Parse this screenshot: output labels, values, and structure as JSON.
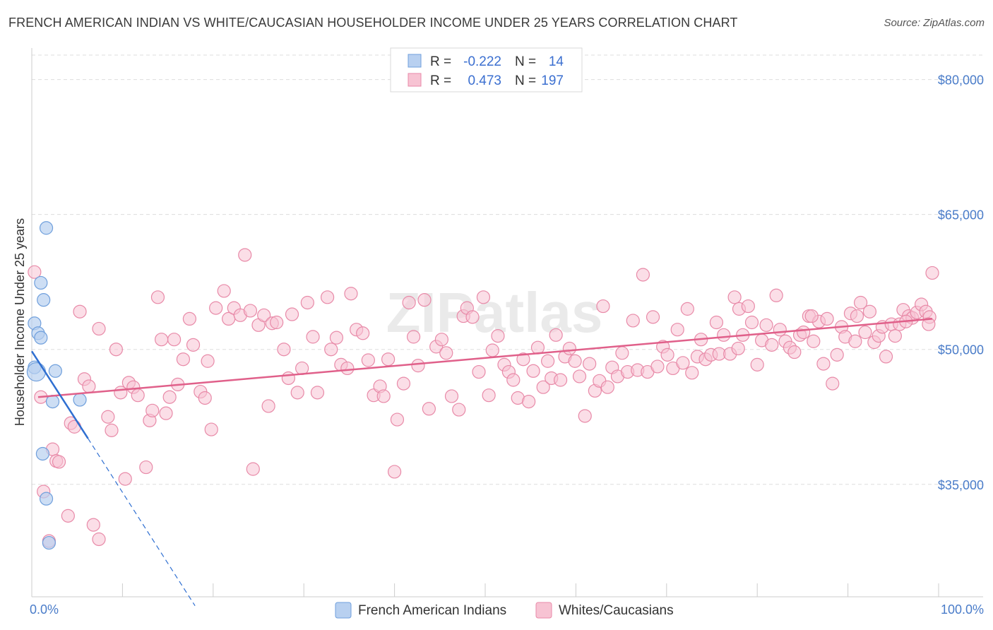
{
  "title": "FRENCH AMERICAN INDIAN VS WHITE/CAUCASIAN HOUSEHOLDER INCOME UNDER 25 YEARS CORRELATION CHART",
  "source": "Source: ZipAtlas.com",
  "legend": {
    "r_label": "R =",
    "n_label": "N =",
    "rows": [
      {
        "r": "-0.222",
        "n": "14"
      },
      {
        "r": "0.473",
        "n": "197"
      }
    ]
  },
  "colors": {
    "blue_fill": "#b8d0f0",
    "blue_stroke": "#6f9fdc",
    "blue_line": "#2f6fd1",
    "pink_fill": "#f7c3d3",
    "pink_stroke": "#e88aa8",
    "pink_line": "#e0608a",
    "tick_text": "#4a7cc9",
    "grid": "#dddddd"
  },
  "chart_data": {
    "type": "scatter",
    "title": "FRENCH AMERICAN INDIAN VS WHITE/CAUCASIAN HOUSEHOLDER INCOME UNDER 25 YEARS CORRELATION CHART",
    "xlabel": "",
    "ylabel": "Householder Income Under 25 years",
    "xlim": [
      0,
      100
    ],
    "ylim": [
      22500,
      83500
    ],
    "y_ticks": [
      35000,
      50000,
      65000,
      80000
    ],
    "y_tick_labels": [
      "$35,000",
      "$50,000",
      "$65,000",
      "$80,000"
    ],
    "x_tick_labels": [
      "0.0%",
      "100.0%"
    ],
    "grid": true,
    "legend_position": "bottom",
    "series": [
      {
        "name": "French American Indians",
        "r": -0.222,
        "n": 14,
        "trend": {
          "x": [
            0,
            6.2
          ],
          "y": [
            49800,
            40100
          ],
          "dashed_to": {
            "x": 18,
            "y": 21500
          }
        },
        "points": [
          [
            0.3,
            48000
          ],
          [
            0.3,
            52900
          ],
          [
            0.7,
            51800
          ],
          [
            1.0,
            51300
          ],
          [
            1.0,
            57400
          ],
          [
            1.3,
            55500
          ],
          [
            1.6,
            63500
          ],
          [
            1.2,
            38400
          ],
          [
            1.6,
            33400
          ],
          [
            1.9,
            28500
          ],
          [
            2.3,
            44200
          ],
          [
            2.6,
            47600
          ],
          [
            5.3,
            44400
          ],
          [
            0.5,
            47500
          ]
        ]
      },
      {
        "name": "Whites/Caucasians",
        "r": 0.473,
        "n": 197,
        "trend": {
          "x": [
            0.7,
            99.3
          ],
          "y": [
            44700,
            53400
          ]
        },
        "points": [
          [
            0.3,
            58600
          ],
          [
            1.0,
            44700
          ],
          [
            1.3,
            34200
          ],
          [
            1.9,
            28700
          ],
          [
            2.3,
            38900
          ],
          [
            2.7,
            37600
          ],
          [
            3.0,
            37500
          ],
          [
            4.0,
            31500
          ],
          [
            4.3,
            41800
          ],
          [
            4.7,
            41400
          ],
          [
            5.3,
            54200
          ],
          [
            5.8,
            46700
          ],
          [
            6.3,
            45900
          ],
          [
            6.8,
            30500
          ],
          [
            7.4,
            28900
          ],
          [
            7.4,
            52300
          ],
          [
            8.4,
            42500
          ],
          [
            8.8,
            41000
          ],
          [
            9.3,
            50000
          ],
          [
            9.8,
            45200
          ],
          [
            10.3,
            35600
          ],
          [
            10.7,
            46300
          ],
          [
            11.2,
            45800
          ],
          [
            11.7,
            44900
          ],
          [
            12.6,
            36900
          ],
          [
            13.0,
            42100
          ],
          [
            13.3,
            43200
          ],
          [
            13.9,
            55800
          ],
          [
            14.3,
            51100
          ],
          [
            14.8,
            42900
          ],
          [
            15.2,
            44700
          ],
          [
            15.7,
            51100
          ],
          [
            16.1,
            46100
          ],
          [
            16.7,
            48900
          ],
          [
            17.4,
            53400
          ],
          [
            17.8,
            50500
          ],
          [
            18.6,
            45300
          ],
          [
            19.1,
            44600
          ],
          [
            19.4,
            48700
          ],
          [
            19.8,
            41100
          ],
          [
            20.3,
            54600
          ],
          [
            21.2,
            56500
          ],
          [
            21.7,
            53400
          ],
          [
            22.3,
            54600
          ],
          [
            23.0,
            53800
          ],
          [
            23.5,
            60500
          ],
          [
            24.1,
            54300
          ],
          [
            24.4,
            36700
          ],
          [
            25.0,
            52700
          ],
          [
            25.6,
            53800
          ],
          [
            26.1,
            43700
          ],
          [
            26.5,
            52900
          ],
          [
            27.0,
            53000
          ],
          [
            27.8,
            50000
          ],
          [
            28.3,
            46800
          ],
          [
            28.7,
            53900
          ],
          [
            29.3,
            45200
          ],
          [
            29.8,
            47900
          ],
          [
            30.4,
            55200
          ],
          [
            31.0,
            51400
          ],
          [
            31.5,
            45200
          ],
          [
            32.6,
            55800
          ],
          [
            33.0,
            50000
          ],
          [
            33.6,
            51300
          ],
          [
            34.1,
            48300
          ],
          [
            34.8,
            47900
          ],
          [
            35.2,
            56200
          ],
          [
            35.8,
            52200
          ],
          [
            36.5,
            51800
          ],
          [
            37.1,
            48800
          ],
          [
            37.7,
            44900
          ],
          [
            38.4,
            45900
          ],
          [
            38.8,
            44800
          ],
          [
            39.3,
            48900
          ],
          [
            40.0,
            36400
          ],
          [
            40.3,
            42200
          ],
          [
            41.0,
            46200
          ],
          [
            41.6,
            55200
          ],
          [
            42.1,
            51400
          ],
          [
            42.6,
            48200
          ],
          [
            43.3,
            55500
          ],
          [
            43.8,
            43400
          ],
          [
            44.6,
            50300
          ],
          [
            45.2,
            51100
          ],
          [
            45.7,
            49600
          ],
          [
            46.3,
            44800
          ],
          [
            47.1,
            43300
          ],
          [
            47.6,
            53700
          ],
          [
            48.0,
            54600
          ],
          [
            48.6,
            53600
          ],
          [
            49.3,
            47500
          ],
          [
            49.8,
            55800
          ],
          [
            50.4,
            44900
          ],
          [
            50.8,
            49900
          ],
          [
            51.4,
            51500
          ],
          [
            52.1,
            48300
          ],
          [
            52.6,
            47500
          ],
          [
            53.1,
            46600
          ],
          [
            53.6,
            44600
          ],
          [
            54.2,
            48900
          ],
          [
            54.8,
            44200
          ],
          [
            55.3,
            47600
          ],
          [
            55.8,
            50200
          ],
          [
            56.4,
            45800
          ],
          [
            56.9,
            48700
          ],
          [
            57.3,
            46800
          ],
          [
            57.8,
            51600
          ],
          [
            58.3,
            46600
          ],
          [
            58.8,
            49200
          ],
          [
            59.3,
            50100
          ],
          [
            59.9,
            48700
          ],
          [
            60.4,
            47000
          ],
          [
            61.0,
            42600
          ],
          [
            61.5,
            48400
          ],
          [
            62.1,
            45400
          ],
          [
            62.6,
            46500
          ],
          [
            63.0,
            54800
          ],
          [
            63.5,
            45800
          ],
          [
            64.0,
            48000
          ],
          [
            64.6,
            47000
          ],
          [
            65.1,
            49600
          ],
          [
            65.7,
            47500
          ],
          [
            66.3,
            53200
          ],
          [
            66.8,
            47700
          ],
          [
            67.4,
            58300
          ],
          [
            67.9,
            47500
          ],
          [
            68.5,
            53600
          ],
          [
            69.0,
            48100
          ],
          [
            69.6,
            50300
          ],
          [
            70.1,
            49400
          ],
          [
            70.7,
            47900
          ],
          [
            71.2,
            52200
          ],
          [
            71.8,
            48500
          ],
          [
            72.3,
            54500
          ],
          [
            72.8,
            47400
          ],
          [
            73.4,
            49200
          ],
          [
            73.8,
            51100
          ],
          [
            74.3,
            48900
          ],
          [
            74.9,
            49400
          ],
          [
            75.5,
            53000
          ],
          [
            75.8,
            49500
          ],
          [
            76.3,
            51600
          ],
          [
            77.0,
            49500
          ],
          [
            77.5,
            55800
          ],
          [
            78.0,
            54500
          ],
          [
            78.4,
            51600
          ],
          [
            79.0,
            54800
          ],
          [
            79.4,
            53000
          ],
          [
            80.0,
            48300
          ],
          [
            80.5,
            51000
          ],
          [
            81.0,
            52700
          ],
          [
            81.6,
            50500
          ],
          [
            82.1,
            56000
          ],
          [
            82.5,
            52200
          ],
          [
            83.1,
            50900
          ],
          [
            83.6,
            50200
          ],
          [
            84.1,
            49700
          ],
          [
            84.7,
            51600
          ],
          [
            85.1,
            51900
          ],
          [
            85.7,
            53700
          ],
          [
            86.2,
            50900
          ],
          [
            86.8,
            53100
          ],
          [
            87.3,
            48400
          ],
          [
            87.7,
            53400
          ],
          [
            88.3,
            46200
          ],
          [
            88.8,
            49400
          ],
          [
            89.3,
            52500
          ],
          [
            89.7,
            51400
          ],
          [
            90.3,
            54000
          ],
          [
            90.8,
            50900
          ],
          [
            91.4,
            55200
          ],
          [
            91.9,
            51900
          ],
          [
            92.4,
            54200
          ],
          [
            92.9,
            50800
          ],
          [
            93.4,
            51500
          ],
          [
            93.8,
            52500
          ],
          [
            94.2,
            49200
          ],
          [
            94.8,
            52800
          ],
          [
            95.2,
            51500
          ],
          [
            95.7,
            52800
          ],
          [
            96.1,
            54400
          ],
          [
            96.7,
            53700
          ],
          [
            97.1,
            53500
          ],
          [
            97.6,
            54100
          ],
          [
            98.1,
            55000
          ],
          [
            98.6,
            54200
          ],
          [
            99.0,
            53600
          ],
          [
            99.3,
            58500
          ],
          [
            98.9,
            52800
          ],
          [
            96.4,
            53100
          ],
          [
            91.0,
            53700
          ],
          [
            86.0,
            53700
          ],
          [
            77.9,
            50100
          ]
        ]
      }
    ]
  },
  "bottom_legend": [
    "French American Indians",
    "Whites/Caucasians"
  ]
}
